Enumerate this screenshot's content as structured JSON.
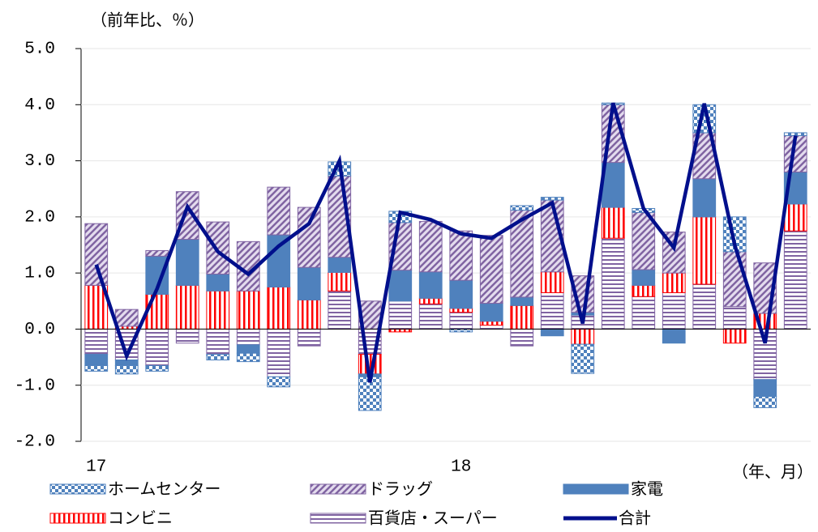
{
  "chart_data": {
    "type": "bar",
    "stacked": true,
    "y_unit_label": "（前年比、％）",
    "x_unit_label": "（年、月）",
    "categories": [
      "17",
      null,
      null,
      null,
      null,
      null,
      null,
      null,
      null,
      null,
      null,
      null,
      "18",
      null,
      null,
      null,
      null,
      null,
      null,
      null,
      null,
      null,
      null,
      null
    ],
    "ylim": [
      -2,
      5
    ],
    "yticks": [
      {
        "value": -2,
        "label": "-2.0"
      },
      {
        "value": -1,
        "label": "-1.0"
      },
      {
        "value": 0,
        "label": "0.0"
      },
      {
        "value": 1,
        "label": "1.0"
      },
      {
        "value": 2,
        "label": "2.0"
      },
      {
        "value": 3,
        "label": "3.0"
      },
      {
        "value": 4,
        "label": "4.0"
      },
      {
        "value": 5,
        "label": "5.0"
      }
    ],
    "series": [
      {
        "name": "ホームセンター",
        "color": "#4f81bd",
        "pattern": "checker",
        "values": [
          -0.1,
          -0.15,
          -0.1,
          0,
          -0.1,
          -0.15,
          -0.18,
          0,
          0.25,
          -0.6,
          0.2,
          0,
          -0.05,
          0,
          0.08,
          0.05,
          -0.52,
          0.03,
          0.07,
          0,
          0.5,
          0.62,
          -0.2,
          0.05
        ]
      },
      {
        "name": "ドラッグ",
        "color": "#8064a2",
        "pattern": "diagonal",
        "values": [
          1.1,
          0.3,
          0.1,
          0.85,
          0.93,
          0.88,
          0.85,
          1.07,
          1.45,
          0.5,
          0.85,
          0.9,
          0.88,
          1.21,
          1.55,
          1.28,
          0.65,
          1.03,
          1.02,
          0.73,
          0.82,
          0.98,
          0.9,
          0.65
        ]
      },
      {
        "name": "家電",
        "color": "#4f81bd",
        "pattern": "solid",
        "values": [
          -0.2,
          -0.1,
          0.68,
          0.82,
          0.3,
          -0.15,
          0.93,
          0.58,
          0.27,
          -0.05,
          0.55,
          0.47,
          0.5,
          0.32,
          0.15,
          -0.12,
          0.05,
          0.8,
          0.28,
          -0.25,
          0.68,
          0,
          -0.3,
          0.57
        ]
      },
      {
        "name": "コンビニ",
        "color": "#ff0000",
        "pattern": "vertical",
        "values": [
          0.78,
          0.05,
          0.62,
          0.78,
          0.68,
          0.68,
          0.75,
          0.52,
          0.33,
          -0.35,
          -0.05,
          0.1,
          0.07,
          0.07,
          0.42,
          0.37,
          -0.27,
          0.55,
          0.2,
          0.35,
          1.2,
          -0.25,
          0.28,
          0.48
        ]
      },
      {
        "name": "百貨店・スーパー",
        "color": "#8064a2",
        "pattern": "horizontal",
        "values": [
          -0.45,
          -0.55,
          -0.65,
          -0.25,
          -0.45,
          -0.28,
          -0.85,
          -0.3,
          0.68,
          -0.45,
          0.5,
          0.45,
          0.3,
          0.07,
          -0.3,
          0.65,
          0.25,
          1.62,
          0.58,
          0.65,
          0.8,
          0.4,
          -0.9,
          1.75
        ]
      },
      {
        "name": "合計",
        "color": "#000f8c",
        "type": "line",
        "values": [
          1.15,
          -0.48,
          0.72,
          2.18,
          1.38,
          0.98,
          1.48,
          1.88,
          3.0,
          -0.95,
          2.08,
          1.95,
          1.7,
          1.62,
          1.95,
          2.25,
          0.1,
          4.03,
          2.15,
          1.45,
          4.02,
          1.5,
          -0.25,
          3.45
        ]
      }
    ]
  }
}
